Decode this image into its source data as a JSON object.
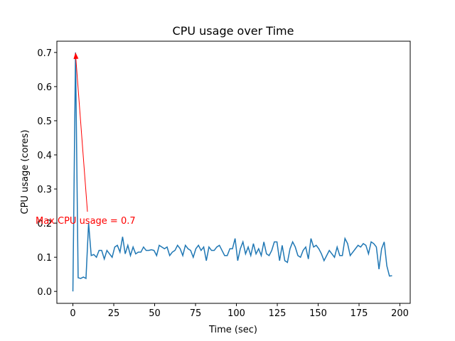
{
  "chart_data": {
    "type": "line",
    "title": "CPU usage over Time",
    "xlabel": "Time (sec)",
    "ylabel": "CPU usage (cores)",
    "color": "#1f77b4",
    "x": [
      0,
      1.6,
      3.2,
      4.8,
      6.4,
      8,
      9.6,
      11.2,
      12.8,
      14.4,
      16,
      17.6,
      19.2,
      20.8,
      22.4,
      24,
      25.6,
      27.2,
      28.8,
      30.4,
      32,
      33.6,
      35.2,
      36.8,
      38.4,
      40,
      41.6,
      43.2,
      44.8,
      46.4,
      48,
      49.6,
      51.2,
      52.8,
      54.4,
      56,
      57.6,
      59.2,
      60.8,
      62.4,
      64,
      65.6,
      67.2,
      68.8,
      70.4,
      72,
      73.6,
      75.2,
      76.8,
      78.4,
      80,
      81.6,
      83.2,
      84.8,
      86.4,
      88,
      89.6,
      91.2,
      92.8,
      94.4,
      96,
      97.6,
      99.2,
      100.8,
      102.4,
      104,
      105.6,
      107.2,
      108.8,
      110.4,
      112,
      113.6,
      115.2,
      116.8,
      118.4,
      120,
      121.6,
      123.2,
      124.8,
      126.4,
      128,
      129.6,
      131.2,
      132.8,
      134.4,
      136,
      137.6,
      139.2,
      140.8,
      142.4,
      144,
      145.6,
      147.2,
      148.8,
      150.4,
      152,
      153.6,
      155.2,
      156.8,
      158.4,
      160,
      161.6,
      163.2,
      164.8,
      166.4,
      168,
      169.6,
      171.2,
      172.8,
      174.4,
      176,
      177.6,
      179.2,
      180.8,
      182.4,
      184,
      185.6,
      187.2,
      188.8,
      190.4,
      192,
      193.6,
      195.2
    ],
    "values": [
      0,
      0.7,
      0.04,
      0.038,
      0.042,
      0.038,
      0.2,
      0.105,
      0.108,
      0.1,
      0.12,
      0.12,
      0.095,
      0.12,
      0.11,
      0.1,
      0.13,
      0.135,
      0.115,
      0.16,
      0.11,
      0.135,
      0.105,
      0.13,
      0.11,
      0.115,
      0.115,
      0.13,
      0.12,
      0.12,
      0.122,
      0.12,
      0.105,
      0.135,
      0.13,
      0.125,
      0.13,
      0.105,
      0.115,
      0.12,
      0.135,
      0.125,
      0.105,
      0.135,
      0.125,
      0.12,
      0.1,
      0.125,
      0.135,
      0.12,
      0.13,
      0.09,
      0.13,
      0.12,
      0.12,
      0.13,
      0.135,
      0.12,
      0.105,
      0.105,
      0.125,
      0.125,
      0.155,
      0.09,
      0.125,
      0.145,
      0.11,
      0.13,
      0.105,
      0.14,
      0.11,
      0.125,
      0.105,
      0.145,
      0.11,
      0.105,
      0.12,
      0.145,
      0.145,
      0.09,
      0.135,
      0.09,
      0.085,
      0.125,
      0.145,
      0.13,
      0.105,
      0.1,
      0.12,
      0.13,
      0.095,
      0.155,
      0.13,
      0.135,
      0.125,
      0.11,
      0.09,
      0.105,
      0.12,
      0.11,
      0.1,
      0.13,
      0.105,
      0.105,
      0.155,
      0.14,
      0.105,
      0.115,
      0.125,
      0.135,
      0.13,
      0.14,
      0.135,
      0.11,
      0.145,
      0.14,
      0.13,
      0.065,
      0.125,
      0.145,
      0.075,
      0.045,
      0.046
    ],
    "xlim": [
      -9.8,
      206.3
    ],
    "ylim": [
      -0.035,
      0.733
    ],
    "xticks": [
      0,
      25,
      50,
      75,
      100,
      125,
      150,
      175,
      200
    ],
    "yticks": [
      {
        "value": 0,
        "label": "0.0"
      },
      0.1,
      0.2,
      0.3,
      0.4,
      0.5,
      0.6,
      0.7
    ],
    "annotation": {
      "text": "Max CPU usage = 0.7",
      "color": "red"
    }
  }
}
